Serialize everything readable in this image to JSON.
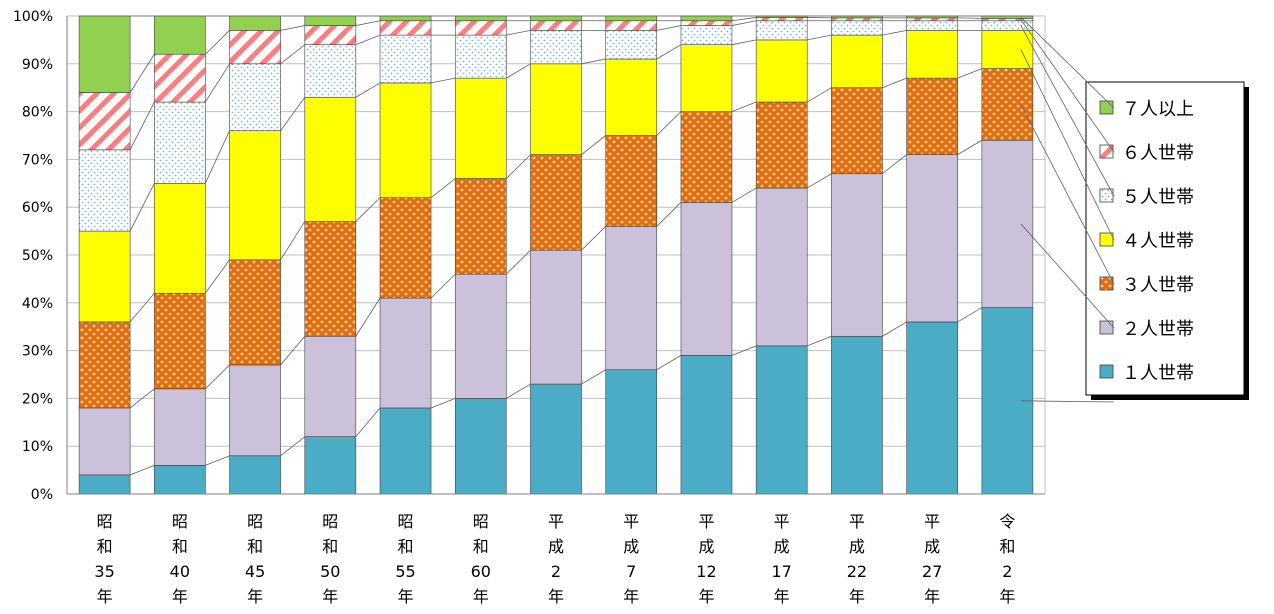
{
  "chart_data": {
    "type": "bar",
    "stacked": true,
    "title": "",
    "xlabel": "",
    "ylabel": "",
    "ylim": [
      0,
      100
    ],
    "grid": true,
    "legend_position": "right",
    "y_ticks": [
      "0%",
      "10%",
      "20%",
      "30%",
      "40%",
      "50%",
      "60%",
      "70%",
      "80%",
      "90%",
      "100%"
    ],
    "categories": [
      [
        "昭",
        "和",
        "35",
        "年"
      ],
      [
        "昭",
        "和",
        "40",
        "年"
      ],
      [
        "昭",
        "和",
        "45",
        "年"
      ],
      [
        "昭",
        "和",
        "50",
        "年"
      ],
      [
        "昭",
        "和",
        "55",
        "年"
      ],
      [
        "昭",
        "和",
        "60",
        "年"
      ],
      [
        "平",
        "成",
        "2",
        "年"
      ],
      [
        "平",
        "成",
        "7",
        "年"
      ],
      [
        "平",
        "成",
        "12",
        "年"
      ],
      [
        "平",
        "成",
        "17",
        "年"
      ],
      [
        "平",
        "成",
        "22",
        "年"
      ],
      [
        "平",
        "成",
        "27",
        "年"
      ],
      [
        "令",
        "和",
        "2",
        "年"
      ]
    ],
    "series": [
      {
        "name": "１人世帯",
        "pattern": "solid",
        "color": "#4bacc6",
        "values": [
          4,
          6,
          8,
          12,
          18,
          20,
          23,
          26,
          29,
          31,
          33,
          36,
          39
        ]
      },
      {
        "name": "２人世帯",
        "pattern": "solid",
        "color": "#ccc1da",
        "values": [
          14,
          16,
          19,
          21,
          23,
          26,
          28,
          30,
          32,
          33,
          34,
          35,
          35
        ]
      },
      {
        "name": "３人世帯",
        "pattern": "dots",
        "color": "#e46c0a",
        "values": [
          18,
          20,
          22,
          24,
          21,
          20,
          20,
          19,
          19,
          18,
          18,
          16,
          15
        ]
      },
      {
        "name": "４人世帯",
        "pattern": "solid",
        "color": "#ffff00",
        "values": [
          19,
          23,
          27,
          26,
          24,
          21,
          19,
          16,
          14,
          13,
          11,
          10,
          8
        ]
      },
      {
        "name": "５人世帯",
        "pattern": "smalldots",
        "color": "#92cddc",
        "values": [
          17,
          17,
          14,
          11,
          10,
          9,
          7,
          6,
          4,
          4,
          3,
          2,
          2
        ]
      },
      {
        "name": "６人世帯",
        "pattern": "stripes",
        "color": "#ff7c80",
        "values": [
          12,
          10,
          7,
          4,
          3,
          3,
          2,
          2,
          1,
          0.7,
          0.6,
          0.6,
          0.5
        ]
      },
      {
        "name": "７人以上",
        "pattern": "solid",
        "color": "#92d050",
        "values": [
          16,
          8,
          3,
          2,
          1,
          1,
          1,
          1,
          1,
          0.3,
          0.4,
          0.4,
          0.5
        ]
      }
    ]
  }
}
